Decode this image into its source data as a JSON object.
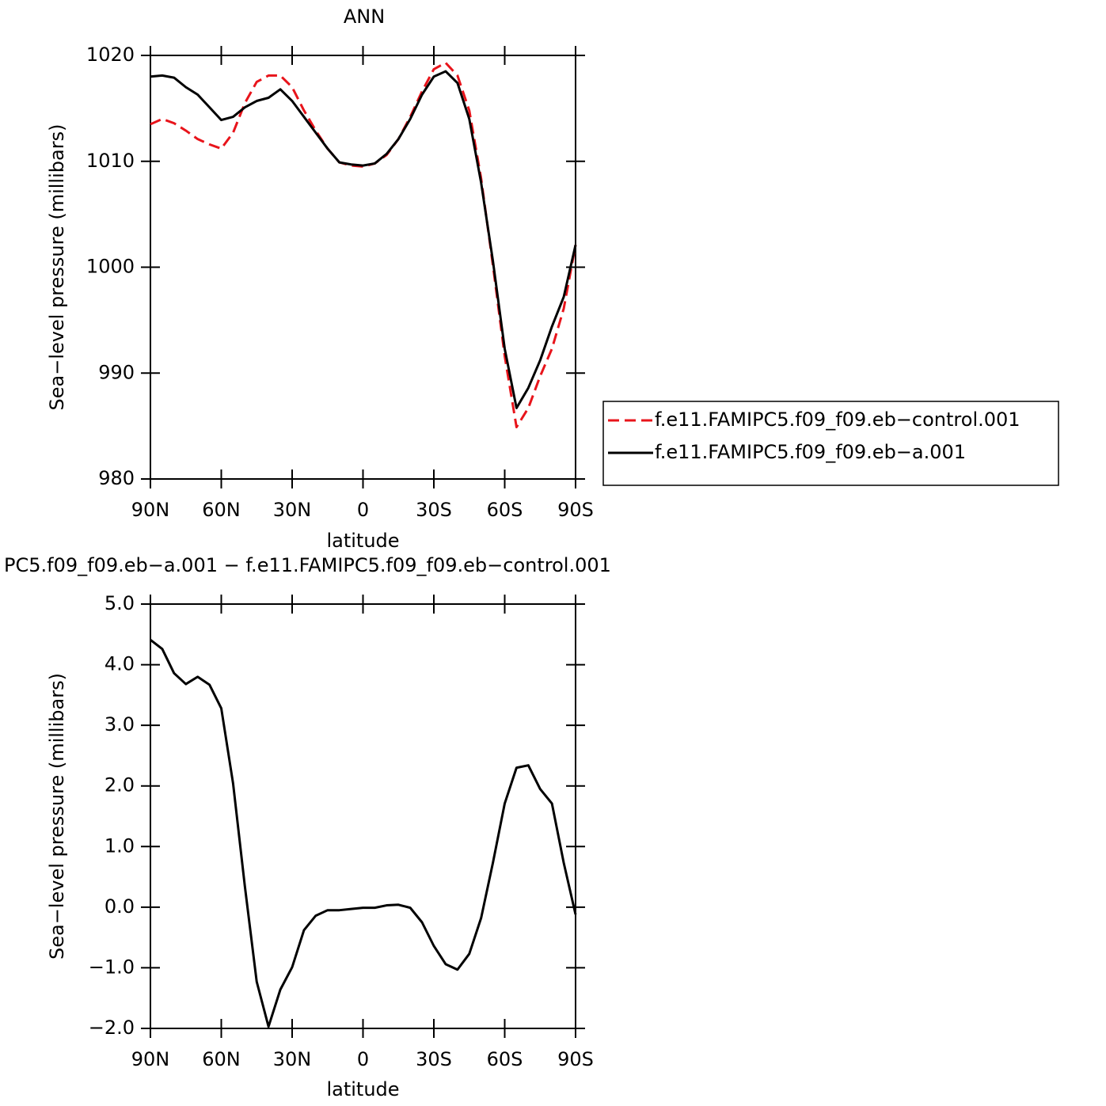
{
  "chart_data": [
    {
      "type": "line",
      "title": "ANN",
      "xlabel": "latitude",
      "ylabel": "Sea−level pressure (millibars)",
      "x": [
        90,
        85,
        80,
        75,
        70,
        65,
        60,
        55,
        50,
        45,
        40,
        35,
        30,
        25,
        20,
        15,
        10,
        5,
        0,
        -5,
        -10,
        -15,
        -20,
        -25,
        -30,
        -35,
        -40,
        -45,
        -50,
        -55,
        -60,
        -65,
        -70,
        -75,
        -80,
        -85,
        -90
      ],
      "xlim": [
        90,
        -90
      ],
      "xticks": [
        {
          "value": 90,
          "label": "90N"
        },
        {
          "value": 60,
          "label": "60N"
        },
        {
          "value": 30,
          "label": "30N"
        },
        0,
        {
          "value": -30,
          "label": "30S"
        },
        {
          "value": -60,
          "label": "60S"
        },
        {
          "value": -90,
          "label": "90S"
        }
      ],
      "ylim": [
        980,
        1020
      ],
      "yticks": [
        980,
        990,
        1000,
        1010,
        1020
      ],
      "legend": "right",
      "series": [
        {
          "name": "f.e11.FAMIPC5.f09_f09.eb−control.001",
          "color": "#e8141b",
          "linestyle": "dashed",
          "values": [
            1013.5,
            1014.0,
            1013.6,
            1012.9,
            1012.1,
            1011.6,
            1011.2,
            1012.7,
            1015.5,
            1017.5,
            1018.1,
            1018.1,
            1017.0,
            1014.8,
            1012.9,
            1011.2,
            1009.9,
            1009.6,
            1009.5,
            1009.8,
            1010.6,
            1012.1,
            1014.2,
            1016.6,
            1018.7,
            1019.3,
            1018.1,
            1014.8,
            1008.4,
            1000.2,
            991.6,
            984.9,
            986.7,
            989.7,
            992.3,
            996.1,
            1002.1
          ]
        },
        {
          "name": "f.e11.FAMIPC5.f09_f09.eb−a.001",
          "color": "#000000",
          "linestyle": "solid",
          "values": [
            1018.0,
            1018.1,
            1017.9,
            1017.0,
            1016.3,
            1015.1,
            1013.9,
            1014.2,
            1015.1,
            1015.7,
            1016.0,
            1016.8,
            1015.7,
            1014.2,
            1012.7,
            1011.2,
            1009.9,
            1009.7,
            1009.6,
            1009.8,
            1010.7,
            1012.1,
            1014.0,
            1016.3,
            1018.0,
            1018.5,
            1017.4,
            1014.0,
            1008.0,
            1000.6,
            992.3,
            986.7,
            988.6,
            991.2,
            994.4,
            997.2,
            1002.1
          ]
        }
      ]
    },
    {
      "type": "line",
      "title": "PC5.f09_f09.eb−a.001 − f.e11.FAMIPC5.f09_f09.eb−control.001",
      "xlabel": "latitude",
      "ylabel": "Sea−level pressure (millibars)",
      "x": [
        90,
        85,
        80,
        75,
        70,
        65,
        60,
        55,
        50,
        45,
        40,
        35,
        30,
        25,
        20,
        15,
        10,
        5,
        0,
        -5,
        -10,
        -15,
        -20,
        -25,
        -30,
        -35,
        -40,
        -45,
        -50,
        -55,
        -60,
        -65,
        -70,
        -75,
        -80,
        -85,
        -90
      ],
      "xlim": [
        90,
        -90
      ],
      "xticks": [
        {
          "value": 90,
          "label": "90N"
        },
        {
          "value": 60,
          "label": "60N"
        },
        {
          "value": 30,
          "label": "30N"
        },
        0,
        {
          "value": -30,
          "label": "30S"
        },
        {
          "value": -60,
          "label": "60S"
        },
        {
          "value": -90,
          "label": "90S"
        }
      ],
      "ylim": [
        -2,
        5
      ],
      "yticks": [
        {
          "value": -2,
          "label": "−2.0"
        },
        {
          "value": -1,
          "label": "−1.0"
        },
        {
          "value": 0,
          "label": "0.0"
        },
        {
          "value": 1,
          "label": "1.0"
        },
        {
          "value": 2,
          "label": "2.0"
        },
        {
          "value": 3,
          "label": "3.0"
        },
        {
          "value": 4,
          "label": "4.0"
        },
        {
          "value": 5,
          "label": "5.0"
        }
      ],
      "series": [
        {
          "color": "#000000",
          "linestyle": "solid",
          "values": [
            4.41,
            4.26,
            3.86,
            3.68,
            3.8,
            3.67,
            3.28,
            2.04,
            0.34,
            -1.23,
            -1.97,
            -1.36,
            -0.99,
            -0.38,
            -0.14,
            -0.05,
            -0.05,
            -0.03,
            -0.01,
            -0.01,
            0.03,
            0.04,
            -0.01,
            -0.25,
            -0.64,
            -0.94,
            -1.03,
            -0.77,
            -0.18,
            0.73,
            1.71,
            2.3,
            2.34,
            1.95,
            1.71,
            0.73,
            -0.12
          ]
        }
      ]
    }
  ]
}
